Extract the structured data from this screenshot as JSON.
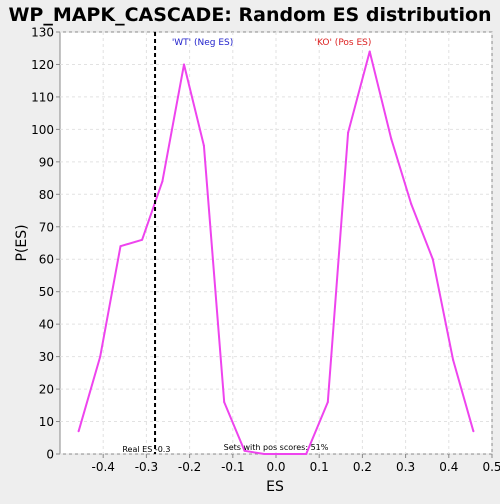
{
  "chart_data": {
    "type": "line",
    "title": "WP_MAPK_CASCADE: Random ES distribution",
    "xlabel": "ES",
    "ylabel": "P(ES)",
    "xlim": [
      -0.5,
      0.5
    ],
    "ylim": [
      0,
      130
    ],
    "x_ticks": [
      -0.4,
      -0.3,
      -0.2,
      -0.1,
      0.0,
      0.1,
      0.2,
      0.3,
      0.4,
      0.5
    ],
    "x_tick_labels": [
      "-0.4",
      "-0.3",
      "-0.2",
      "-0.1",
      "0.0",
      "0.1",
      "0.2",
      "0.3",
      "0.4",
      "0.5"
    ],
    "y_ticks": [
      0,
      10,
      20,
      30,
      40,
      50,
      60,
      70,
      80,
      90,
      100,
      110,
      120,
      130
    ],
    "grid": true,
    "series": [
      {
        "color": "#ee44ee",
        "x": [
          -0.457,
          -0.407,
          -0.36,
          -0.31,
          -0.263,
          -0.213,
          -0.167,
          -0.12,
          -0.073,
          -0.027,
          0.02,
          0.07,
          0.12,
          0.167,
          0.217,
          0.267,
          0.313,
          0.363,
          0.41,
          0.457
        ],
        "y": [
          7,
          30,
          64,
          66,
          84,
          120,
          95,
          16,
          1,
          0,
          0,
          0,
          16,
          99,
          124,
          97,
          77,
          60,
          29,
          7
        ]
      }
    ],
    "reference_line": {
      "x": -0.28,
      "color": "#000000",
      "style": "dashed"
    },
    "annotations": {
      "neg_label": {
        "text": "'WT' (Neg ES)",
        "x": -0.17,
        "color": "#2222cc"
      },
      "pos_label": {
        "text": "'KO' (Pos ES)",
        "x": 0.155,
        "color": "#dd2222"
      },
      "real_es": {
        "text": "Real ES -0.3",
        "x": -0.3
      },
      "pos_scores": {
        "text": "Sets with pos scores: 51%",
        "x": 0.0
      }
    },
    "colors": {
      "background": "#eeeeee",
      "plot_background": "#ffffff",
      "grid": "#e2e2e2",
      "axis": "#888888"
    }
  }
}
